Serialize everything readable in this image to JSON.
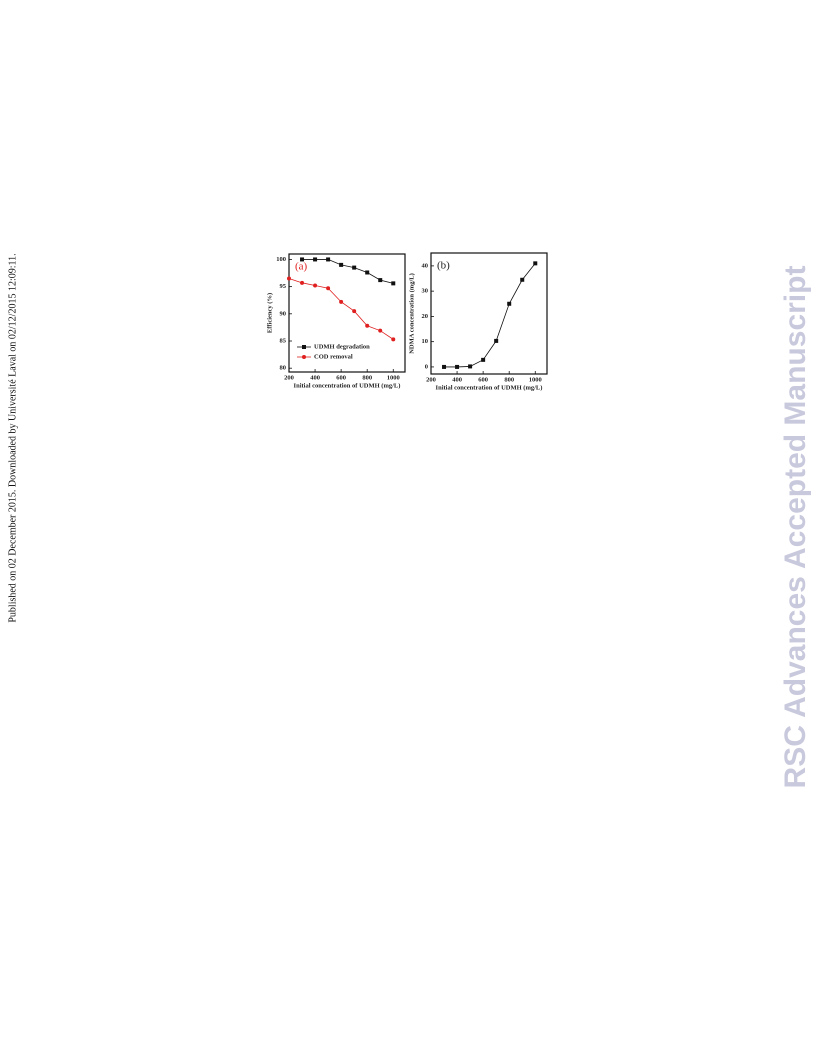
{
  "side_note": "Published on 02 December 2015. Downloaded by Université Laval on 02/12/2015 12:09:11.",
  "watermark": "RSC Advances Accepted Manuscript",
  "chart_data": [
    {
      "type": "line",
      "annotation": "(a)",
      "annotation_color": "#e02020",
      "xlabel": "Initial concentration of UDMH (mg/L)",
      "ylabel": "Efficiency (%)",
      "xlim": [
        200,
        1090
      ],
      "xticks": [
        200,
        400,
        600,
        800,
        1000
      ],
      "ylim": [
        79.3,
        101
      ],
      "yticks": [
        80,
        85,
        90,
        95,
        100
      ],
      "legend": "lower left",
      "series": [
        {
          "name": "UDMH degradation",
          "color": "#111111",
          "marker": "square",
          "x": [
            300,
            400,
            500,
            600,
            700,
            800,
            900,
            1000
          ],
          "values": [
            100,
            100,
            100,
            99,
            98.5,
            97.6,
            96.2,
            95.6
          ]
        },
        {
          "name": "COD removal",
          "color": "#e02020",
          "marker": "circle",
          "x": [
            200,
            300,
            400,
            500,
            600,
            700,
            800,
            900,
            1000
          ],
          "values": [
            96.5,
            95.7,
            95.2,
            94.7,
            92.2,
            90.5,
            87.8,
            86.9,
            85.3
          ]
        }
      ]
    },
    {
      "type": "line",
      "annotation": "(b)",
      "annotation_color": "#222222",
      "xlabel": "Initial concentration of UDMH (mg/L)",
      "ylabel": "NDMA concentration (mg/L)",
      "xlim": [
        200,
        1090
      ],
      "xticks": [
        200,
        400,
        600,
        800,
        1000
      ],
      "ylim": [
        -2.8,
        45.1
      ],
      "yticks": [
        0,
        10,
        20,
        30,
        40
      ],
      "series": [
        {
          "color": "#111111",
          "marker": "square",
          "x": [
            300,
            400,
            500,
            600,
            700,
            800,
            900,
            1000
          ],
          "values": [
            0,
            0,
            0.2,
            2.8,
            10.3,
            25,
            34.5,
            41
          ]
        }
      ]
    }
  ]
}
